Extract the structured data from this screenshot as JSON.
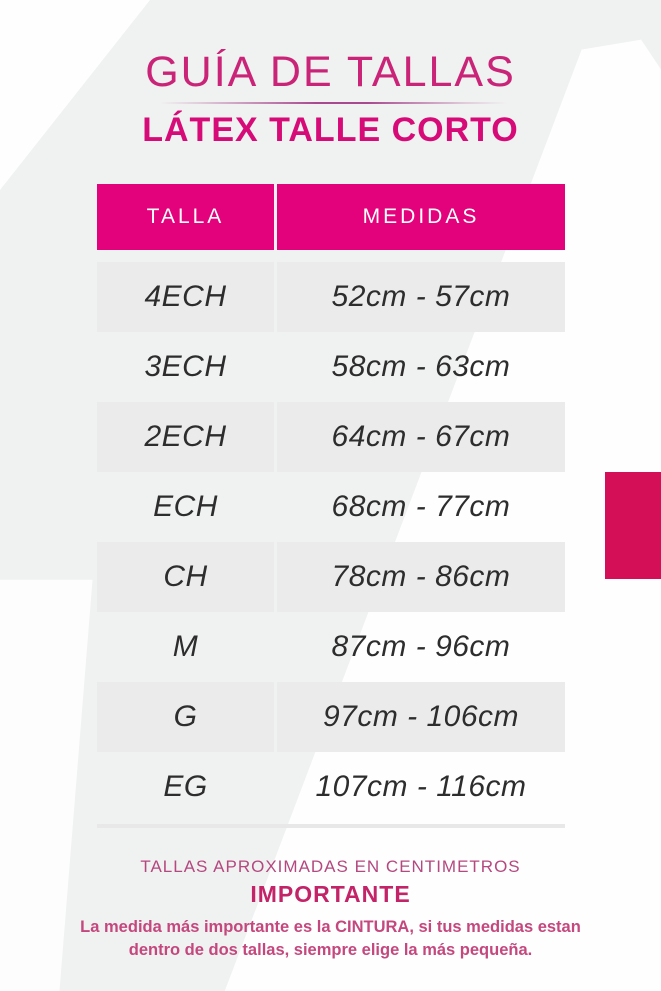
{
  "page": {
    "title": "GUÍA DE TALLAS",
    "subtitle": "LÁTEX TALLE CORTO"
  },
  "table": {
    "headers": [
      "TALLA",
      "MEDIDAS"
    ],
    "rows": [
      {
        "talla": "4ECH",
        "medidas": "52cm - 57cm"
      },
      {
        "talla": "3ECH",
        "medidas": "58cm - 63cm"
      },
      {
        "talla": "2ECH",
        "medidas": "64cm - 67cm"
      },
      {
        "talla": "ECH",
        "medidas": "68cm - 77cm"
      },
      {
        "talla": "CH",
        "medidas": "78cm - 86cm"
      },
      {
        "talla": "M",
        "medidas": "87cm - 96cm"
      },
      {
        "talla": "G",
        "medidas": "97cm - 106cm"
      },
      {
        "talla": "EG",
        "medidas": "107cm - 116cm"
      }
    ]
  },
  "footer": {
    "note_caps": "TALLAS APROXIMADAS EN CENTIMETROS",
    "important_label": "IMPORTANTE",
    "important_text": "La medida más importante es la CINTURA, si tus medidas estan dentro de dos tallas, siempre elige la más pequeña."
  },
  "colors": {
    "title": "#ca2478",
    "subtitle": "#d60b78",
    "header_bg": "#e4027c",
    "row_stripe": "#ebebeb",
    "row_text": "#2d2d2d",
    "accent_rect": "#d40e57",
    "footer_caps": "#b4487f",
    "important": "#c32367",
    "note": "#c4477d"
  }
}
